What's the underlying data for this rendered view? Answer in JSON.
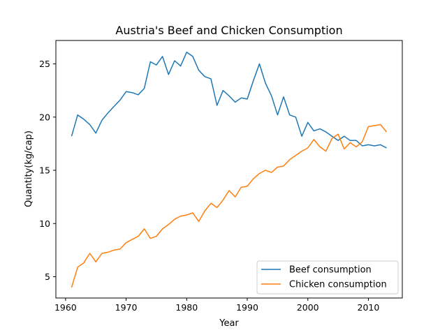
{
  "chart_data": {
    "type": "line",
    "title": "Austria's Beef and Chicken Consumption",
    "xlabel": "Year",
    "ylabel": "Quantity(kg/cap)",
    "xlim": [
      1958.4,
      2015.6
    ],
    "ylim": [
      3.0,
      27.2
    ],
    "xticks": [
      1960,
      1970,
      1980,
      1990,
      2000,
      2010
    ],
    "yticks": [
      5,
      10,
      15,
      20,
      25
    ],
    "grid": false,
    "legend_position": "lower-right",
    "x": [
      1961,
      1962,
      1963,
      1964,
      1965,
      1966,
      1967,
      1968,
      1969,
      1970,
      1971,
      1972,
      1973,
      1974,
      1975,
      1976,
      1977,
      1978,
      1979,
      1980,
      1981,
      1982,
      1983,
      1984,
      1985,
      1986,
      1987,
      1988,
      1989,
      1990,
      1991,
      1992,
      1993,
      1994,
      1995,
      1996,
      1997,
      1998,
      1999,
      2000,
      2001,
      2002,
      2003,
      2004,
      2005,
      2006,
      2007,
      2008,
      2009,
      2010,
      2011,
      2012,
      2013
    ],
    "series": [
      {
        "name": "Beef consumption",
        "color": "#1f77b4",
        "values": [
          18.2,
          20.2,
          19.8,
          19.3,
          18.5,
          19.7,
          20.4,
          21.0,
          21.6,
          22.4,
          22.3,
          22.1,
          22.7,
          25.2,
          24.9,
          25.7,
          24.0,
          25.3,
          24.8,
          26.1,
          25.7,
          24.4,
          23.8,
          23.6,
          21.1,
          22.5,
          22.0,
          21.4,
          21.8,
          21.7,
          23.4,
          25.0,
          23.2,
          22.0,
          20.2,
          21.9,
          20.2,
          20.0,
          18.2,
          19.5,
          18.7,
          18.9,
          18.6,
          18.2,
          17.8,
          18.2,
          17.8,
          17.8,
          17.3,
          17.4,
          17.3,
          17.4,
          17.1
        ]
      },
      {
        "name": "Chicken consumption",
        "color": "#ff7f0e",
        "values": [
          4.0,
          5.9,
          6.3,
          7.2,
          6.4,
          7.2,
          7.3,
          7.5,
          7.6,
          8.2,
          8.5,
          8.8,
          9.5,
          8.6,
          8.8,
          9.5,
          9.9,
          10.4,
          10.7,
          10.8,
          11.0,
          10.2,
          11.2,
          11.9,
          11.5,
          12.2,
          13.1,
          12.5,
          13.4,
          13.5,
          14.2,
          14.7,
          15.0,
          14.8,
          15.3,
          15.4,
          16.0,
          16.4,
          16.8,
          17.1,
          17.9,
          17.2,
          16.8,
          18.0,
          18.4,
          17.0,
          17.6,
          17.2,
          17.7,
          19.1,
          19.2,
          19.3,
          18.6
        ]
      }
    ]
  }
}
